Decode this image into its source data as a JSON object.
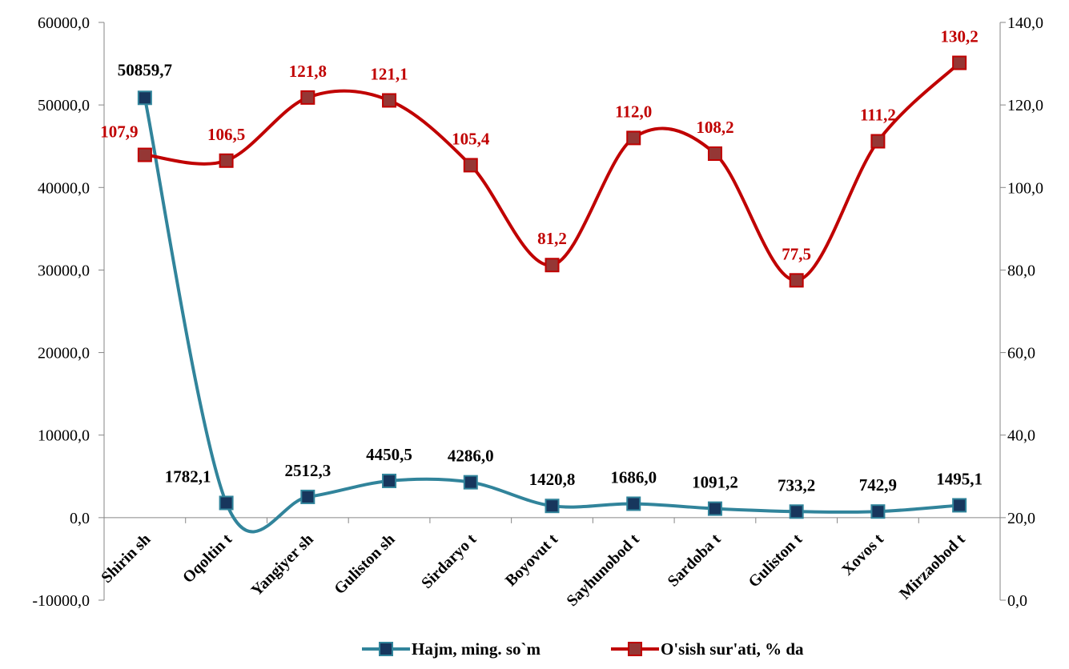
{
  "chart_data": {
    "type": "line",
    "categories": [
      "Shirin sh",
      "Oqoltin t",
      "Yangiyer sh",
      "Guliston sh",
      "Sirdaryo t",
      "Boyovut t",
      "Sayhunobod t",
      "Sardoba t",
      "Guliston t",
      "Xovos t",
      "Mirzaobod t"
    ],
    "series": [
      {
        "name": "Hajm, ming. so`m",
        "axis": "left",
        "color": "#31849B",
        "marker_color": "#17365D",
        "values": [
          50859.7,
          1782.1,
          2512.3,
          4450.5,
          4286.0,
          1420.8,
          1686.0,
          1091.2,
          733.2,
          742.9,
          1495.1
        ],
        "labels": [
          "50859,7",
          "1782,1",
          "2512,3",
          "4450,5",
          "4286,0",
          "1420,8",
          "1686,0",
          "1091,2",
          "733,2",
          "742,9",
          "1495,1"
        ],
        "label_color": "#000000"
      },
      {
        "name": "O'sish sur'ati, % da",
        "axis": "right",
        "color": "#C00000",
        "marker_color": "#953735",
        "values": [
          107.9,
          106.5,
          121.8,
          121.1,
          105.4,
          81.2,
          112.0,
          108.2,
          77.5,
          111.2,
          130.2
        ],
        "labels": [
          "107,9",
          "106,5",
          "121,8",
          "121,1",
          "105,4",
          "81,2",
          "112,0",
          "108,2",
          "77,5",
          "111,2",
          "130,2"
        ],
        "label_color": "#C00000"
      }
    ],
    "y_left": {
      "min": -10000,
      "max": 60000,
      "ticks": [
        -10000,
        0,
        10000,
        20000,
        30000,
        40000,
        50000,
        60000
      ],
      "tick_labels": [
        "-10000,0",
        "0,0",
        "10000,0",
        "20000,0",
        "30000,0",
        "40000,0",
        "50000,0",
        "60000,0"
      ]
    },
    "y_right": {
      "min": 0,
      "max": 140,
      "ticks": [
        0,
        20,
        40,
        60,
        80,
        100,
        120,
        140
      ],
      "tick_labels": [
        "0,0",
        "20,0",
        "40,0",
        "60,0",
        "80,0",
        "100,0",
        "120,0",
        "140,0"
      ]
    },
    "smooth": true,
    "grid": false,
    "legend_position": "bottom"
  }
}
